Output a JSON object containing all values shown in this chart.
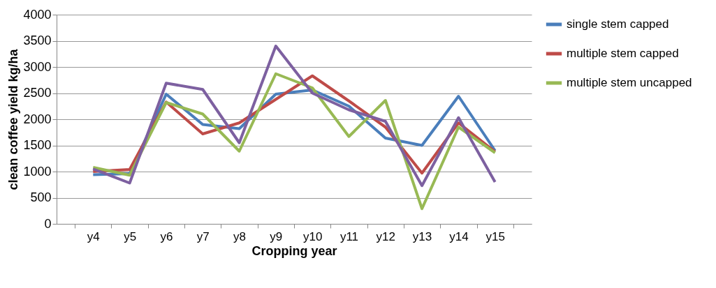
{
  "chart_data": {
    "type": "line",
    "xlabel": "Cropping year",
    "ylabel": "clean coffee yield kg/ha",
    "categories": [
      "y4",
      "y5",
      "y6",
      "y7",
      "y8",
      "y9",
      "y10",
      "y11",
      "y12",
      "y13",
      "y14",
      "y15"
    ],
    "series": [
      {
        "name": "single stem capped",
        "color": "#4a7ebb",
        "values": [
          940,
          960,
          2480,
          1900,
          1820,
          2480,
          2560,
          2250,
          1640,
          1500,
          2440,
          1400
        ]
      },
      {
        "name": "multiple stem capped",
        "color": "#be4b48",
        "values": [
          1000,
          1040,
          2330,
          1720,
          1930,
          2380,
          2830,
          2350,
          1850,
          970,
          1930,
          1380
        ]
      },
      {
        "name": "multiple stem uncapped",
        "color": "#98b954",
        "values": [
          1080,
          930,
          2320,
          2100,
          1390,
          2870,
          2600,
          1670,
          2360,
          290,
          1850,
          1360
        ]
      },
      {
        "color": "#7d60a0",
        "values": [
          1050,
          780,
          2690,
          2570,
          1550,
          3400,
          2500,
          2180,
          1960,
          730,
          2030,
          800
        ]
      }
    ],
    "ylim": [
      0,
      4000
    ],
    "yticks": [
      0,
      500,
      1000,
      1500,
      2000,
      2500,
      3000,
      3500,
      4000
    ],
    "grid": "y",
    "legend": "right",
    "marker": "none",
    "line_style": "solid"
  }
}
